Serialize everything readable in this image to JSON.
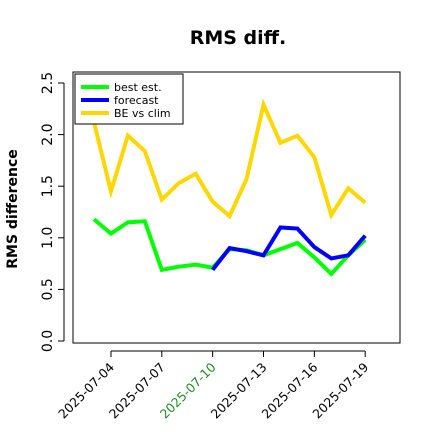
{
  "chart_data": {
    "type": "line",
    "title": "RMS diff.",
    "xlabel": "",
    "ylabel": "RMS difference",
    "ylim": [
      0,
      2.5
    ],
    "yticks": [
      "0.0",
      "0.5",
      "1.0",
      "1.5",
      "2.0",
      "2.5"
    ],
    "x": [
      "2025-07-03",
      "2025-07-04",
      "2025-07-05",
      "2025-07-06",
      "2025-07-07",
      "2025-07-08",
      "2025-07-09",
      "2025-07-10",
      "2025-07-11",
      "2025-07-12",
      "2025-07-13",
      "2025-07-14",
      "2025-07-15",
      "2025-07-16",
      "2025-07-17",
      "2025-07-18",
      "2025-07-19"
    ],
    "xticks": [
      "2025-07-04",
      "2025-07-07",
      "2025-07-10",
      "2025-07-13",
      "2025-07-16",
      "2025-07-19"
    ],
    "highlighted_xtick": "2025-07-10",
    "highlight_color": "#228B22",
    "grid": false,
    "legend_position": "top-left",
    "series": [
      {
        "name": "best est.",
        "color": "#00ff00",
        "values": [
          1.18,
          1.04,
          1.15,
          1.16,
          0.69,
          0.72,
          0.74,
          0.71,
          0.89,
          0.88,
          0.83,
          0.89,
          0.95,
          0.81,
          0.65,
          0.83,
          0.98
        ]
      },
      {
        "name": "forecast",
        "color": "#0000ff",
        "values": [
          null,
          null,
          null,
          null,
          null,
          null,
          null,
          0.69,
          0.9,
          0.87,
          0.83,
          1.1,
          1.09,
          0.91,
          0.8,
          0.83,
          1.02
        ]
      },
      {
        "name": "BE vs clim",
        "color": "#ffd700",
        "values": [
          2.12,
          1.45,
          1.99,
          1.84,
          1.37,
          1.53,
          1.62,
          1.35,
          1.21,
          1.57,
          2.29,
          1.92,
          1.99,
          1.78,
          1.22,
          1.48,
          1.34
        ]
      }
    ]
  }
}
